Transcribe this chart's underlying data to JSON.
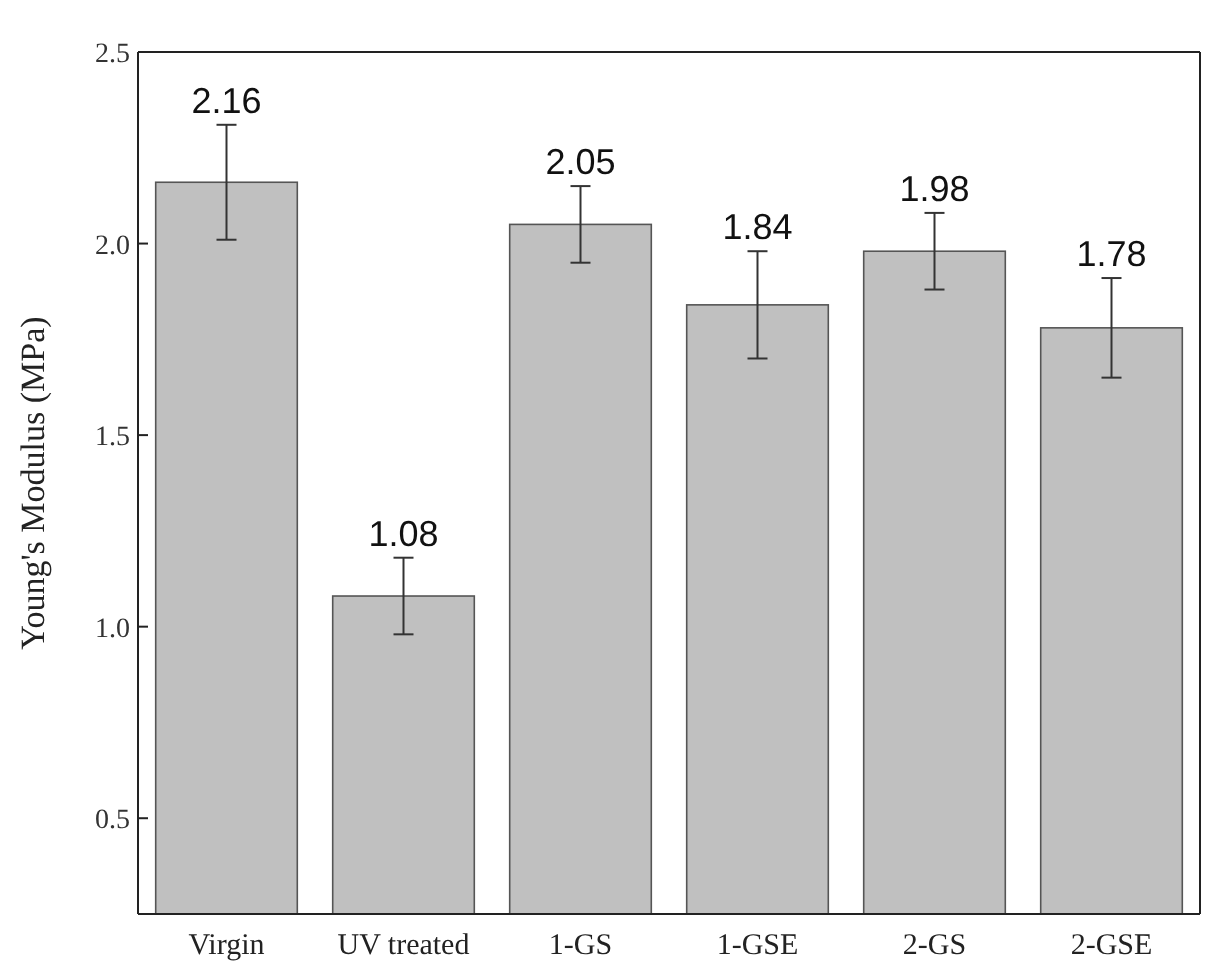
{
  "chart_data": {
    "type": "bar",
    "ylabel": "Young's Modulus (MPa)",
    "categories": [
      "Virgin",
      "UV treated",
      "1-GS",
      "1-GSE",
      "2-GS",
      "2-GSE"
    ],
    "values": [
      2.16,
      1.08,
      2.05,
      1.84,
      1.98,
      1.78
    ],
    "errors": [
      0.15,
      0.1,
      0.1,
      0.14,
      0.1,
      0.13
    ],
    "color": "#c0c0c0",
    "ylim": [
      0.25,
      2.5
    ],
    "yticks": [
      {
        "value": 0.5,
        "label": "0.5"
      },
      {
        "value": 1,
        "label": "1.0"
      },
      {
        "value": 1.5,
        "label": "1.5"
      },
      {
        "value": 2,
        "label": "2.0"
      },
      {
        "value": 2.5,
        "label": "2.5"
      }
    ],
    "data_labels": true,
    "grid": false
  }
}
